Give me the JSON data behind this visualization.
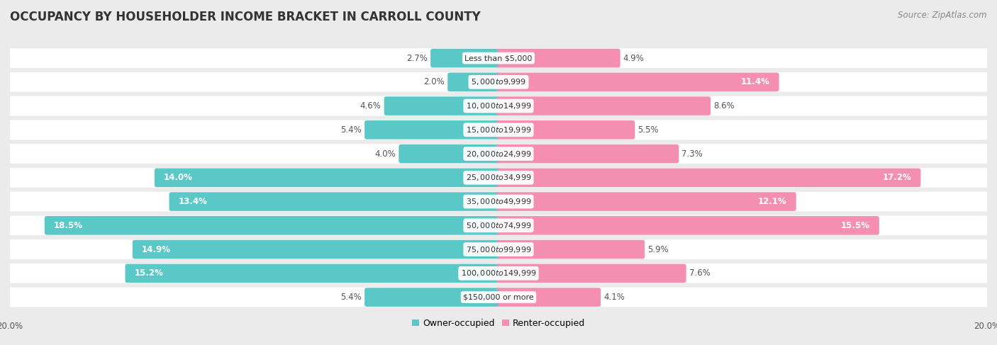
{
  "title": "OCCUPANCY BY HOUSEHOLDER INCOME BRACKET IN CARROLL COUNTY",
  "source": "Source: ZipAtlas.com",
  "categories": [
    "Less than $5,000",
    "$5,000 to $9,999",
    "$10,000 to $14,999",
    "$15,000 to $19,999",
    "$20,000 to $24,999",
    "$25,000 to $34,999",
    "$35,000 to $49,999",
    "$50,000 to $74,999",
    "$75,000 to $99,999",
    "$100,000 to $149,999",
    "$150,000 or more"
  ],
  "owner_values": [
    2.7,
    2.0,
    4.6,
    5.4,
    4.0,
    14.0,
    13.4,
    18.5,
    14.9,
    15.2,
    5.4
  ],
  "renter_values": [
    4.9,
    11.4,
    8.6,
    5.5,
    7.3,
    17.2,
    12.1,
    15.5,
    5.9,
    7.6,
    4.1
  ],
  "owner_color": "#5bc8c8",
  "renter_color": "#f48fb1",
  "bg_color": "#ebebeb",
  "row_bg_color": "#ffffff",
  "bar_height": 0.62,
  "xlim": 20.0,
  "title_fontsize": 12,
  "label_fontsize": 8.5,
  "cat_fontsize": 8.0,
  "legend_fontsize": 9,
  "source_fontsize": 8.5
}
